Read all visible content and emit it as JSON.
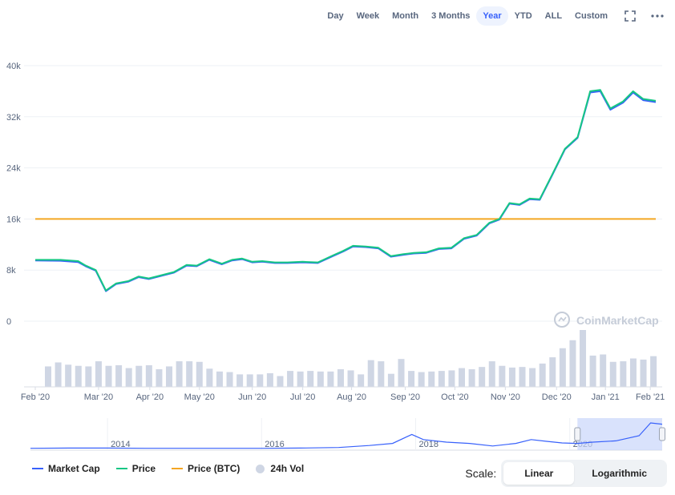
{
  "toolbar": {
    "ranges": [
      "Day",
      "Week",
      "Month",
      "3 Months",
      "Year",
      "YTD",
      "ALL",
      "Custom"
    ],
    "active_range": "Year",
    "fullscreen_icon": "expand-icon",
    "more_icon": "more-dots-icon"
  },
  "watermark": "CoinMarketCap",
  "legend": {
    "market_cap": "Market Cap",
    "price": "Price",
    "price_btc": "Price (BTC)",
    "vol": "24h Vol"
  },
  "scale": {
    "label": "Scale:",
    "linear": "Linear",
    "logarithmic": "Logarithmic",
    "active": "Linear"
  },
  "chart_data": {
    "type": "line",
    "ylim": [
      0,
      40000
    ],
    "y_ticks": [
      0,
      8000,
      16000,
      24000,
      32000,
      40000
    ],
    "y_tick_labels": [
      "0",
      "8k",
      "16k",
      "24k",
      "32k",
      "40k"
    ],
    "x_ticks": [
      "Feb '20",
      "Mar '20",
      "Apr '20",
      "May '20",
      "Jun '20",
      "Jul '20",
      "Aug '20",
      "Sep '20",
      "Oct '20",
      "Nov '20",
      "Dec '20",
      "Jan '21",
      "Feb '21"
    ],
    "x_tick_positions": [
      0,
      1,
      2,
      3,
      4,
      5,
      6,
      7,
      8,
      9,
      10,
      11,
      12
    ],
    "colors": {
      "market_cap": "#3861fb",
      "price": "#16c784",
      "price_btc": "#f4a623",
      "vol": "#cfd6e4"
    },
    "price": {
      "x": [
        0,
        0.5,
        0.85,
        1.0,
        1.2,
        1.4,
        1.6,
        1.85,
        2.05,
        2.25,
        2.5,
        2.75,
        3.0,
        3.2,
        3.45,
        3.7,
        3.9,
        4.1,
        4.3,
        4.5,
        4.75,
        5.0,
        5.3,
        5.6,
        5.9,
        6.1,
        6.3,
        6.55,
        6.8,
        7.05,
        7.3,
        7.5,
        7.75,
        8.0,
        8.25,
        8.5,
        8.75,
        9.0,
        9.2,
        9.4,
        9.6,
        9.8,
        10.0,
        10.25,
        10.5,
        10.75,
        11.0,
        11.2,
        11.4,
        11.65,
        11.85,
        12.05,
        12.3
      ],
      "values": [
        9600,
        9600,
        9400,
        8700,
        8000,
        4800,
        5900,
        6300,
        7000,
        6700,
        7200,
        7700,
        8800,
        8700,
        9700,
        9000,
        9600,
        9800,
        9300,
        9400,
        9200,
        9200,
        9300,
        9200,
        10300,
        11000,
        11800,
        11700,
        11500,
        10200,
        10500,
        10700,
        10800,
        11400,
        11500,
        13000,
        13500,
        15400,
        16000,
        18500,
        18300,
        19200,
        19100,
        23000,
        27000,
        28800,
        36000,
        36200,
        33300,
        34400,
        36000,
        34800,
        34500
      ]
    },
    "market_cap": {
      "x": [
        0,
        0.5,
        0.85,
        1.0,
        1.2,
        1.4,
        1.6,
        1.85,
        2.05,
        2.25,
        2.5,
        2.75,
        3.0,
        3.2,
        3.45,
        3.7,
        3.9,
        4.1,
        4.3,
        4.5,
        4.75,
        5.0,
        5.3,
        5.6,
        5.9,
        6.1,
        6.3,
        6.55,
        6.8,
        7.05,
        7.3,
        7.5,
        7.75,
        8.0,
        8.25,
        8.5,
        8.75,
        9.0,
        9.2,
        9.4,
        9.6,
        9.8,
        10.0,
        10.25,
        10.5,
        10.75,
        11.0,
        11.2,
        11.4,
        11.65,
        11.85,
        12.05,
        12.3
      ],
      "values": [
        9500,
        9450,
        9250,
        8600,
        7900,
        4700,
        5800,
        6200,
        6900,
        6600,
        7100,
        7600,
        8700,
        8600,
        9600,
        8900,
        9500,
        9700,
        9200,
        9300,
        9100,
        9100,
        9200,
        9100,
        10200,
        10900,
        11700,
        11600,
        11400,
        10100,
        10400,
        10600,
        10700,
        11300,
        11400,
        12900,
        13400,
        15300,
        15900,
        18400,
        18200,
        19100,
        19000,
        22900,
        26900,
        28700,
        35800,
        36000,
        33100,
        34200,
        35800,
        34600,
        34300
      ]
    },
    "price_btc": {
      "value": 16000
    },
    "vol": {
      "x": [
        0.0,
        0.2,
        0.4,
        0.6,
        0.8,
        1.0,
        1.2,
        1.4,
        1.6,
        1.8,
        2.0,
        2.2,
        2.4,
        2.6,
        2.8,
        3.0,
        3.2,
        3.4,
        3.6,
        3.8,
        4.0,
        4.2,
        4.4,
        4.6,
        4.8,
        5.0,
        5.2,
        5.4,
        5.6,
        5.8,
        6.0,
        6.2,
        6.4,
        6.6,
        6.8,
        7.0,
        7.2,
        7.4,
        7.6,
        7.8,
        8.0,
        8.2,
        8.4,
        8.6,
        8.8,
        9.0,
        9.2,
        9.4,
        9.6,
        9.8,
        10.0,
        10.2,
        10.4,
        10.6,
        10.8,
        11.0,
        11.2,
        11.4,
        11.6,
        11.8,
        12.0
      ],
      "values": [
        0.36,
        0.43,
        0.39,
        0.37,
        0.36,
        0.45,
        0.37,
        0.38,
        0.33,
        0.37,
        0.38,
        0.31,
        0.36,
        0.45,
        0.45,
        0.44,
        0.32,
        0.27,
        0.26,
        0.22,
        0.22,
        0.22,
        0.24,
        0.19,
        0.28,
        0.27,
        0.28,
        0.27,
        0.27,
        0.31,
        0.29,
        0.22,
        0.47,
        0.45,
        0.23,
        0.49,
        0.28,
        0.26,
        0.27,
        0.28,
        0.29,
        0.33,
        0.31,
        0.35,
        0.45,
        0.37,
        0.34,
        0.35,
        0.33,
        0.41,
        0.52,
        0.68,
        0.82,
        1.0,
        0.55,
        0.57,
        0.44,
        0.45,
        0.5,
        0.48,
        0.54
      ]
    },
    "navigator": {
      "years": [
        "2014",
        "2016",
        "2018",
        "2020"
      ],
      "year_positions": [
        2014,
        2016,
        2018,
        2020
      ],
      "range": [
        2013.0,
        2021.2
      ],
      "selection": [
        2020.1,
        2021.2
      ],
      "x": [
        2013.0,
        2013.5,
        2014.0,
        2014.5,
        2015.0,
        2015.5,
        2016.0,
        2016.5,
        2017.0,
        2017.4,
        2017.7,
        2017.95,
        2018.1,
        2018.4,
        2018.7,
        2019.0,
        2019.3,
        2019.5,
        2019.7,
        2019.9,
        2020.1,
        2020.3,
        2020.6,
        2020.9,
        2021.05,
        2021.2
      ],
      "values": [
        0.01,
        0.02,
        0.02,
        0.01,
        0.01,
        0.01,
        0.01,
        0.02,
        0.04,
        0.12,
        0.2,
        0.55,
        0.35,
        0.25,
        0.2,
        0.1,
        0.2,
        0.35,
        0.28,
        0.22,
        0.2,
        0.25,
        0.3,
        0.5,
        1.0,
        0.95
      ]
    }
  }
}
